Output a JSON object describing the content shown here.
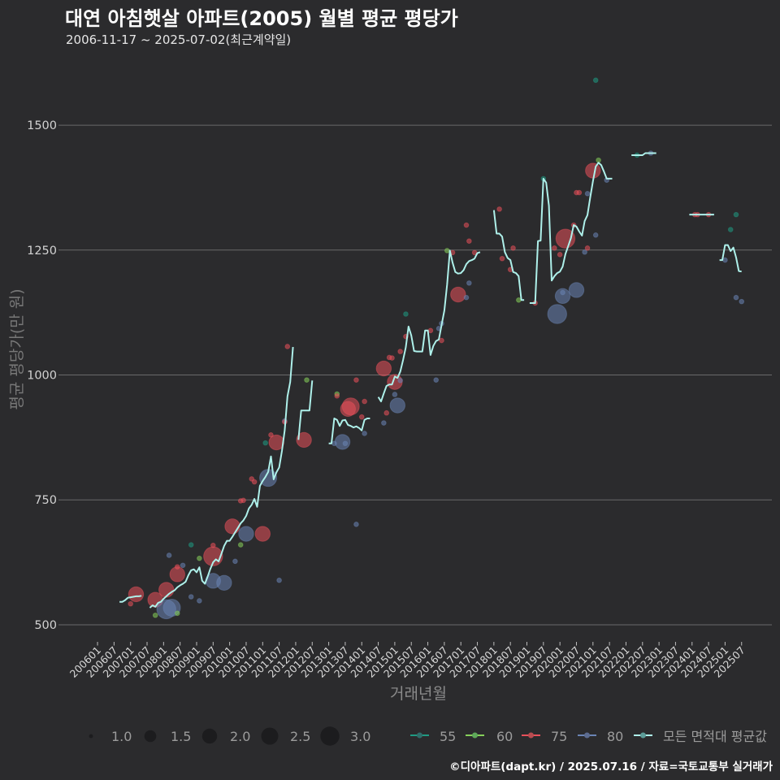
{
  "header": {
    "title": "대연 아침햇살 아파트(2005) 월별 평균 평당가",
    "subtitle": "2006-11-17 ~ 2025-07-02(최근계약일)"
  },
  "caption": "©디아파트(dapt.kr) / 2025.07.16 / 자료=국토교통부 실거래가",
  "colors": {
    "background": "#2b2b2d",
    "grid": "#6a6a6a",
    "55": "#1f9a82",
    "60": "#86d05a",
    "75": "#e8505a",
    "80": "#6a84b4",
    "avg_line": "#aef0ea"
  },
  "chart_data": {
    "type": "line+scatter",
    "title": "대연 아침햇살 아파트(2005) 월별 평균 평당가",
    "subtitle": "2006-11-17 ~ 2025-07-02(최근계약일)",
    "xlabel": "거래년월",
    "ylabel": "평균 평당가(만 원)",
    "ylim": [
      469,
      1653
    ],
    "xlim": [
      "200412",
      "202606"
    ],
    "yticks": [
      500,
      750,
      1000,
      1250,
      1500
    ],
    "ytick_labels": [
      "500",
      "750",
      "1000",
      "1250",
      "1500"
    ],
    "xticks": [
      "200601",
      "200607",
      "200701",
      "200707",
      "200801",
      "200807",
      "200901",
      "200907",
      "201001",
      "201007",
      "201101",
      "201107",
      "201201",
      "201207",
      "201301",
      "201307",
      "201401",
      "201407",
      "201501",
      "201507",
      "201601",
      "201607",
      "201701",
      "201707",
      "201801",
      "201807",
      "201901",
      "201907",
      "202001",
      "202007",
      "202101",
      "202107",
      "202201",
      "202207",
      "202301",
      "202307",
      "202401",
      "202407",
      "202501",
      "202507"
    ],
    "grid": true,
    "size_legend": {
      "values": [
        1.0,
        1.5,
        2.0,
        2.5,
        3.0
      ],
      "labels": [
        "1.0",
        "1.5",
        "2.0",
        "2.5",
        "3.0"
      ]
    },
    "color_legend": [
      {
        "key": "55",
        "label": "55"
      },
      {
        "key": "60",
        "label": "60"
      },
      {
        "key": "75",
        "label": "75"
      },
      {
        "key": "80",
        "label": "80"
      },
      {
        "key": "avg_line",
        "label": "모든 면적대 평균값"
      }
    ],
    "avg_line": {
      "name": "모든 면적대 평균값",
      "segments": [
        {
          "start": "200609",
          "values": [
            546,
            546,
            549,
            554,
            555,
            556,
            557,
            557,
            558
          ]
        },
        {
          "start": "200708",
          "values": [
            534,
            539,
            536,
            544,
            546,
            552,
            557,
            562,
            566,
            569,
            575,
            579,
            582,
            586,
            599,
            609,
            611,
            605,
            615,
            588,
            582,
            596,
            612,
            625,
            631,
            627,
            642,
            658,
            668,
            668,
            676,
            685,
            694,
            703,
            709,
            718,
            733,
            740,
            752,
            736,
            778,
            788,
            796,
            806,
            837,
            791,
            805,
            815,
            848,
            889,
            957,
            986,
            1056
          ]
        },
        {
          "start": "201202",
          "values": [
            870,
            929,
            929,
            929,
            929,
            989
          ]
        },
        {
          "start": "201301",
          "values": [
            863,
            863,
            913,
            910,
            898,
            909,
            910,
            900,
            898,
            895,
            897,
            894,
            889,
            910,
            913,
            913
          ]
        },
        {
          "start": "201407",
          "values": [
            956,
            947,
            963,
            978,
            981,
            981,
            997,
            994,
            1007,
            1030,
            1055,
            1097,
            1079,
            1048,
            1047,
            1047,
            1047,
            1089,
            1089,
            1040,
            1058,
            1068,
            1071,
            1100,
            1129,
            1181,
            1249,
            1225,
            1206,
            1203,
            1204,
            1210,
            1222,
            1228,
            1230,
            1233,
            1244,
            1246
          ]
        },
        {
          "start": "201801",
          "values": [
            1330,
            1283,
            1283,
            1277,
            1246,
            1234,
            1230,
            1206,
            1204,
            1198,
            1150,
            1150
          ]
        },
        {
          "start": "201902",
          "values": [
            1144,
            1144,
            1144,
            1268,
            1269,
            1393,
            1385,
            1339,
            1189,
            1198,
            1204,
            1207,
            1217,
            1242,
            1258,
            1274,
            1300,
            1297,
            1287,
            1279,
            1308,
            1320,
            1355,
            1388,
            1417,
            1425,
            1420,
            1407,
            1393,
            1393,
            1393
          ]
        },
        {
          "start": "202203",
          "values": [
            1440,
            1440,
            1440,
            1440,
            1440,
            1444,
            1444,
            1444,
            1444,
            1444
          ]
        },
        {
          "start": "202312",
          "values": [
            1321,
            1321,
            1321,
            1321,
            1321,
            1321,
            1321,
            1321,
            1321,
            1321
          ]
        },
        {
          "start": "202411",
          "values": [
            1230,
            1230,
            1260,
            1260,
            1248,
            1255,
            1235,
            1208,
            1207
          ]
        }
      ]
    },
    "points_columns": [
      "yyyymm",
      "avg_price",
      "area",
      "count"
    ],
    "points": [
      [
        "200701",
        542,
        "75",
        1
      ],
      [
        "200703",
        561,
        "75",
        2
      ],
      [
        "200710",
        550,
        "75",
        2
      ],
      [
        "200710",
        519,
        "60",
        1
      ],
      [
        "200802",
        570,
        "75",
        2
      ],
      [
        "200802",
        531,
        "80",
        3
      ],
      [
        "200804",
        534,
        "80",
        2.5
      ],
      [
        "200803",
        639,
        "80",
        1
      ],
      [
        "200806",
        601,
        "75",
        2
      ],
      [
        "200806",
        523,
        "60",
        1
      ],
      [
        "200806",
        616,
        "75",
        1
      ],
      [
        "200808",
        619,
        "80",
        1
      ],
      [
        "200811",
        660,
        "55",
        1
      ],
      [
        "200811",
        556,
        "80",
        1
      ],
      [
        "200902",
        633,
        "60",
        1
      ],
      [
        "200902",
        548,
        "80",
        1
      ],
      [
        "200907",
        637,
        "75",
        3
      ],
      [
        "200907",
        588,
        "80",
        2
      ],
      [
        "200907",
        659,
        "75",
        1
      ],
      [
        "200911",
        584,
        "80",
        2
      ],
      [
        "201002",
        697,
        "75",
        2
      ],
      [
        "201003",
        627,
        "80",
        1
      ],
      [
        "201005",
        748,
        "75",
        1
      ],
      [
        "201006",
        749,
        "75",
        1
      ],
      [
        "201005",
        660,
        "60",
        1
      ],
      [
        "201007",
        682,
        "80",
        2
      ],
      [
        "201009",
        792,
        "75",
        1
      ],
      [
        "201010",
        786,
        "75",
        1
      ],
      [
        "201101",
        682,
        "75",
        2
      ],
      [
        "201102",
        864,
        "55",
        1
      ],
      [
        "201103",
        794,
        "80",
        2.5
      ],
      [
        "201104",
        880,
        "75",
        1
      ],
      [
        "201106",
        865,
        "75",
        2
      ],
      [
        "201107",
        589,
        "80",
        1
      ],
      [
        "201109",
        908,
        "80",
        1
      ],
      [
        "201109",
        906,
        "75",
        1
      ],
      [
        "201110",
        1057,
        "75",
        1
      ],
      [
        "201204",
        870,
        "75",
        2
      ],
      [
        "201205",
        990,
        "60",
        1
      ],
      [
        "201303",
        863,
        "80",
        1
      ],
      [
        "201304",
        962,
        "60",
        1
      ],
      [
        "201304",
        958,
        "75",
        1
      ],
      [
        "201306",
        866,
        "80",
        2
      ],
      [
        "201307",
        863,
        "80",
        1
      ],
      [
        "201308",
        932,
        "75",
        2
      ],
      [
        "201309",
        937,
        "75",
        2.5
      ],
      [
        "201311",
        990,
        "75",
        1
      ],
      [
        "201311",
        701,
        "80",
        1
      ],
      [
        "201401",
        916,
        "75",
        1
      ],
      [
        "201402",
        947,
        "75",
        1
      ],
      [
        "201402",
        883,
        "80",
        1
      ],
      [
        "201409",
        1013,
        "75",
        2
      ],
      [
        "201409",
        904,
        "80",
        1
      ],
      [
        "201410",
        924,
        "75",
        1
      ],
      [
        "201411",
        1035,
        "75",
        1
      ],
      [
        "201412",
        1034,
        "75",
        1
      ],
      [
        "201501",
        986,
        "75",
        2
      ],
      [
        "201501",
        961,
        "80",
        1
      ],
      [
        "201502",
        939,
        "80",
        2
      ],
      [
        "201503",
        1047,
        "75",
        1
      ],
      [
        "201503",
        989,
        "80",
        1
      ],
      [
        "201505",
        1122,
        "55",
        1
      ],
      [
        "201505",
        1077,
        "75",
        1
      ],
      [
        "201602",
        1089,
        "75",
        1
      ],
      [
        "201604",
        990,
        "80",
        1
      ],
      [
        "201605",
        1093,
        "80",
        1
      ],
      [
        "201606",
        1103,
        "80",
        1
      ],
      [
        "201606",
        1069,
        "75",
        1
      ],
      [
        "201608",
        1249,
        "60",
        1
      ],
      [
        "201610",
        1245,
        "75",
        1
      ],
      [
        "201612",
        1161,
        "75",
        2
      ],
      [
        "201703",
        1300,
        "75",
        1
      ],
      [
        "201703",
        1155,
        "80",
        1
      ],
      [
        "201704",
        1268,
        "75",
        1
      ],
      [
        "201704",
        1184,
        "80",
        1
      ],
      [
        "201706",
        1245,
        "75",
        1
      ],
      [
        "201803",
        1332,
        "75",
        1
      ],
      [
        "201804",
        1233,
        "75",
        1
      ],
      [
        "201807",
        1211,
        "75",
        1
      ],
      [
        "201808",
        1254,
        "75",
        1
      ],
      [
        "201810",
        1150,
        "60",
        1
      ],
      [
        "201904",
        1144,
        "75",
        1
      ],
      [
        "201907",
        1393,
        "55",
        1
      ],
      [
        "201911",
        1254,
        "75",
        1
      ],
      [
        "201912",
        1122,
        "80",
        3
      ],
      [
        "202001",
        1241,
        "75",
        1
      ],
      [
        "202002",
        1158,
        "80",
        2
      ],
      [
        "202002",
        1165,
        "80",
        1
      ],
      [
        "202003",
        1273,
        "75",
        3
      ],
      [
        "202006",
        1300,
        "75",
        1
      ],
      [
        "202007",
        1365,
        "75",
        1
      ],
      [
        "202008",
        1365,
        "75",
        1
      ],
      [
        "202007",
        1170,
        "80",
        2
      ],
      [
        "202010",
        1246,
        "80",
        1
      ],
      [
        "202011",
        1254,
        "75",
        1
      ],
      [
        "202011",
        1363,
        "80",
        1
      ],
      [
        "202101",
        1409,
        "75",
        2
      ],
      [
        "202102",
        1280,
        "80",
        1
      ],
      [
        "202102",
        1590,
        "55",
        1
      ],
      [
        "202103",
        1430,
        "60",
        1
      ],
      [
        "202106",
        1390,
        "80",
        1
      ],
      [
        "202205",
        1440,
        "55",
        1
      ],
      [
        "202210",
        1444,
        "80",
        1
      ],
      [
        "202402",
        1321,
        "75",
        1
      ],
      [
        "202403",
        1321,
        "75",
        1
      ],
      [
        "202407",
        1321,
        "75",
        1
      ],
      [
        "202501",
        1230,
        "80",
        1
      ],
      [
        "202503",
        1291,
        "55",
        1
      ],
      [
        "202505",
        1321,
        "55",
        1
      ],
      [
        "202505",
        1155,
        "80",
        1
      ],
      [
        "202507",
        1147,
        "80",
        1
      ]
    ]
  }
}
